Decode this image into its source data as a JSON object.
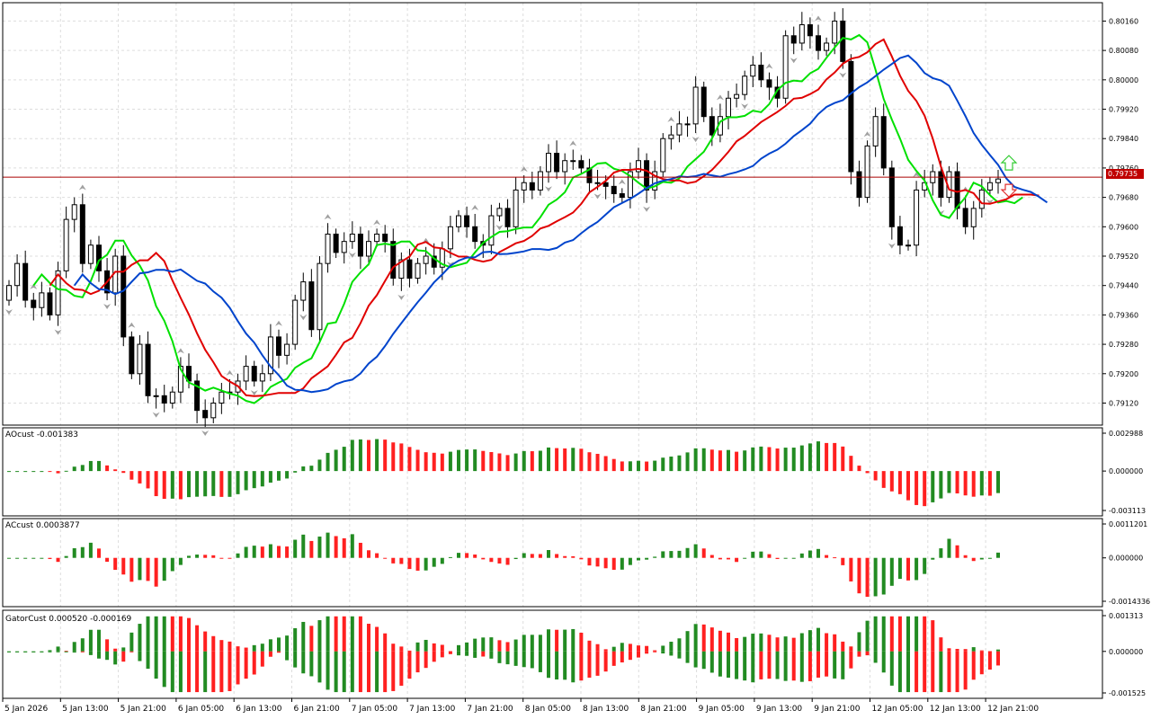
{
  "colors": {
    "bull": "#228B22",
    "bear": "#FF2020",
    "ma_fast": "#00E000",
    "ma_mid": "#E00000",
    "ma_slow": "#0044CC",
    "price_line": "#AA0000",
    "grid": "#DDDDDD",
    "fractal": "#A0A0A0"
  },
  "main": {
    "current_price_label": "0.79735",
    "current_price": 0.79735,
    "y_ticks": [
      "0.80160",
      "0.80080",
      "0.80000",
      "0.79920",
      "0.79840",
      "0.79760",
      "0.79680",
      "0.79600",
      "0.79520",
      "0.79440",
      "0.79360",
      "0.79280",
      "0.79200",
      "0.79120"
    ],
    "y_min": 0.7906,
    "y_max": 0.8021,
    "signal_up_icon": "up-arrow-icon",
    "signal_down_icon": "down-arrow-icon"
  },
  "ao_pane": {
    "title": "AOcust -0.001383",
    "y_ticks": [
      "0.002988",
      "0.000000",
      "-0.003113"
    ]
  },
  "ac_pane": {
    "title": "ACcust 0.0003877",
    "y_ticks": [
      "0.0011201",
      "0.000000",
      "-0.0014336"
    ]
  },
  "gator_pane": {
    "title": "GatorCust 0.000520 -0.000169",
    "y_ticks": [
      "0.001313",
      "0.000000",
      "-0.001525"
    ]
  },
  "x_axis": {
    "labels": [
      "5 Jan 2026",
      "5 Jan 13:00",
      "5 Jan 21:00",
      "6 Jan 05:00",
      "6 Jan 13:00",
      "6 Jan 21:00",
      "7 Jan 05:00",
      "7 Jan 13:00",
      "7 Jan 21:00",
      "8 Jan 05:00",
      "8 Jan 13:00",
      "8 Jan 21:00",
      "9 Jan 05:00",
      "9 Jan 13:00",
      "9 Jan 21:00",
      "12 Jan 05:00",
      "12 Jan 13:00",
      "12 Jan 21:00"
    ]
  },
  "chart_data": {
    "type": "candlestick",
    "series_close": [
      0.7944,
      0.795,
      0.794,
      0.7938,
      0.7942,
      0.7936,
      0.7948,
      0.7962,
      0.7966,
      0.795,
      0.7955,
      0.7948,
      0.7942,
      0.7952,
      0.793,
      0.792,
      0.7928,
      0.7914,
      0.7914,
      0.7912,
      0.7915,
      0.7922,
      0.7918,
      0.791,
      0.7908,
      0.7912,
      0.7915,
      0.7915,
      0.7918,
      0.7922,
      0.7918,
      0.792,
      0.793,
      0.7925,
      0.7928,
      0.794,
      0.7945,
      0.7932,
      0.795,
      0.7958,
      0.7953,
      0.7956,
      0.7958,
      0.7952,
      0.7956,
      0.7958,
      0.7956,
      0.7946,
      0.7951,
      0.7946,
      0.795,
      0.7952,
      0.7949,
      0.7954,
      0.796,
      0.7963,
      0.796,
      0.7956,
      0.7955,
      0.7963,
      0.7965,
      0.796,
      0.797,
      0.7972,
      0.797,
      0.7975,
      0.798,
      0.7975,
      0.7978,
      0.7978,
      0.7976,
      0.7972,
      0.7972,
      0.7971,
      0.7969,
      0.7968,
      0.7975,
      0.7978,
      0.797,
      0.7975,
      0.7984,
      0.7985,
      0.7988,
      0.7988,
      0.7998,
      0.799,
      0.7985,
      0.799,
      0.7995,
      0.7996,
      0.8001,
      0.8004,
      0.8,
      0.7998,
      0.7995,
      0.8012,
      0.801,
      0.8015,
      0.8012,
      0.8008,
      0.801,
      0.8016,
      0.8005,
      0.7975,
      0.7968,
      0.7982,
      0.799,
      0.7976,
      0.796,
      0.7955,
      0.7955,
      0.797,
      0.7972,
      0.7975,
      0.7968,
      0.7975,
      0.7965,
      0.796,
      0.7965,
      0.797,
      0.7972,
      0.7973
    ]
  }
}
